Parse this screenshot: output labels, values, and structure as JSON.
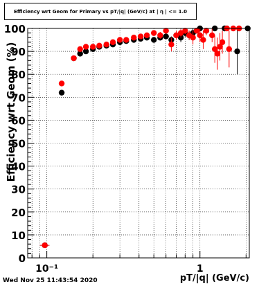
{
  "title": "Efficiency wrt Geom for Primary vs pT/|q| (GeV/c) at | η | <= 1.0",
  "timestamp": "Wed Nov 25 11:43:54 2020",
  "chart_data": {
    "type": "scatter",
    "title": "Efficiency wrt Geom for Primary vs pT/|q| (GeV/c) at | η | <= 1.0",
    "xlabel": "pT/|q| (GeV/c)",
    "ylabel": "Efficiency wrt Geom (%)",
    "xscale": "log",
    "xlim": [
      0.075,
      2.1
    ],
    "ylim": [
      0,
      100
    ],
    "grid": true,
    "x_tick_labels": [
      {
        "value": 0.1,
        "label": "10⁻¹"
      },
      {
        "value": 1,
        "label": "1"
      }
    ],
    "y_ticks": [
      0,
      10,
      20,
      30,
      40,
      50,
      60,
      70,
      80,
      90,
      100
    ],
    "series": [
      {
        "color": "#000000",
        "points": [
          {
            "x": 0.097,
            "y": 5.5,
            "xerr": 0.007,
            "yerr": 0
          },
          {
            "x": 0.125,
            "y": 72,
            "xerr": 0.004,
            "yerr": 0
          },
          {
            "x": 0.15,
            "y": 87,
            "xerr": 0.004,
            "yerr": 0
          },
          {
            "x": 0.165,
            "y": 89,
            "xerr": 0.003,
            "yerr": 0
          },
          {
            "x": 0.18,
            "y": 90,
            "xerr": 0.003,
            "yerr": 0
          },
          {
            "x": 0.2,
            "y": 91,
            "xerr": 0.004,
            "yerr": 0
          },
          {
            "x": 0.22,
            "y": 92,
            "xerr": 0.004,
            "yerr": 0
          },
          {
            "x": 0.245,
            "y": 92.5,
            "xerr": 0.005,
            "yerr": 0
          },
          {
            "x": 0.27,
            "y": 93,
            "xerr": 0.005,
            "yerr": 0
          },
          {
            "x": 0.3,
            "y": 94,
            "xerr": 0.006,
            "yerr": 0
          },
          {
            "x": 0.33,
            "y": 94.5,
            "xerr": 0.006,
            "yerr": 0
          },
          {
            "x": 0.37,
            "y": 95,
            "xerr": 0.007,
            "yerr": 0
          },
          {
            "x": 0.41,
            "y": 95.5,
            "xerr": 0.008,
            "yerr": 0
          },
          {
            "x": 0.45,
            "y": 96,
            "xerr": 0.009,
            "yerr": 0
          },
          {
            "x": 0.5,
            "y": 95,
            "xerr": 0.01,
            "yerr": 1
          },
          {
            "x": 0.55,
            "y": 96,
            "xerr": 0.01,
            "yerr": 1
          },
          {
            "x": 0.6,
            "y": 96.5,
            "xerr": 0.011,
            "yerr": 1
          },
          {
            "x": 0.65,
            "y": 95,
            "xerr": 0.012,
            "yerr": 1.5
          },
          {
            "x": 0.7,
            "y": 97,
            "xerr": 0.013,
            "yerr": 1.5
          },
          {
            "x": 0.75,
            "y": 96,
            "xerr": 0.014,
            "yerr": 2
          },
          {
            "x": 0.8,
            "y": 98,
            "xerr": 0.015,
            "yerr": 2
          },
          {
            "x": 0.85,
            "y": 97,
            "xerr": 0.016,
            "yerr": 2
          },
          {
            "x": 0.9,
            "y": 98,
            "xerr": 0.017,
            "yerr": 2
          },
          {
            "x": 0.95,
            "y": 99,
            "xerr": 0.018,
            "yerr": 1
          },
          {
            "x": 1.0,
            "y": 100,
            "xerr": 0.02,
            "yerr": 0
          },
          {
            "x": 1.1,
            "y": 99,
            "xerr": 0.03,
            "yerr": 1
          },
          {
            "x": 1.25,
            "y": 100,
            "xerr": 0.04,
            "yerr": 0
          },
          {
            "x": 1.45,
            "y": 100,
            "xerr": 0.05,
            "yerr": 0
          },
          {
            "x": 1.75,
            "y": 90,
            "xerr": 0.06,
            "yerr": 10
          },
          {
            "x": 2.05,
            "y": 100,
            "xerr": 0.06,
            "yerr": 0
          }
        ]
      },
      {
        "color": "#ff0000",
        "points": [
          {
            "x": 0.097,
            "y": 5.5,
            "xerr": 0.007,
            "yerr": 0
          },
          {
            "x": 0.125,
            "y": 76,
            "xerr": 0.004,
            "yerr": 0
          },
          {
            "x": 0.15,
            "y": 87,
            "xerr": 0.004,
            "yerr": 0
          },
          {
            "x": 0.165,
            "y": 91,
            "xerr": 0.003,
            "yerr": 0
          },
          {
            "x": 0.18,
            "y": 92,
            "xerr": 0.003,
            "yerr": 0
          },
          {
            "x": 0.2,
            "y": 92,
            "xerr": 0.004,
            "yerr": 0
          },
          {
            "x": 0.22,
            "y": 92.5,
            "xerr": 0.004,
            "yerr": 0
          },
          {
            "x": 0.245,
            "y": 93,
            "xerr": 0.005,
            "yerr": 0
          },
          {
            "x": 0.27,
            "y": 94,
            "xerr": 0.005,
            "yerr": 0
          },
          {
            "x": 0.3,
            "y": 95,
            "xerr": 0.006,
            "yerr": 0
          },
          {
            "x": 0.33,
            "y": 95,
            "xerr": 0.006,
            "yerr": 0
          },
          {
            "x": 0.37,
            "y": 96,
            "xerr": 0.007,
            "yerr": 1
          },
          {
            "x": 0.41,
            "y": 96.5,
            "xerr": 0.008,
            "yerr": 1
          },
          {
            "x": 0.45,
            "y": 97,
            "xerr": 0.009,
            "yerr": 1
          },
          {
            "x": 0.5,
            "y": 98,
            "xerr": 0.01,
            "yerr": 1
          },
          {
            "x": 0.55,
            "y": 97,
            "xerr": 0.01,
            "yerr": 1.5
          },
          {
            "x": 0.6,
            "y": 99,
            "xerr": 0.011,
            "yerr": 1
          },
          {
            "x": 0.65,
            "y": 93,
            "xerr": 0.012,
            "yerr": 3
          },
          {
            "x": 0.7,
            "y": 97,
            "xerr": 0.013,
            "yerr": 2
          },
          {
            "x": 0.75,
            "y": 98,
            "xerr": 0.014,
            "yerr": 2
          },
          {
            "x": 0.8,
            "y": 99,
            "xerr": 0.015,
            "yerr": 1.5
          },
          {
            "x": 0.85,
            "y": 97,
            "xerr": 0.016,
            "yerr": 2
          },
          {
            "x": 0.9,
            "y": 96,
            "xerr": 0.017,
            "yerr": 3
          },
          {
            "x": 0.95,
            "y": 99,
            "xerr": 0.018,
            "yerr": 1
          },
          {
            "x": 1.0,
            "y": 97,
            "xerr": 0.02,
            "yerr": 3
          },
          {
            "x": 1.05,
            "y": 95,
            "xerr": 0.025,
            "yerr": 4
          },
          {
            "x": 1.1,
            "y": 99,
            "xerr": 0.03,
            "yerr": 2
          },
          {
            "x": 1.2,
            "y": 97,
            "xerr": 0.035,
            "yerr": 3
          },
          {
            "x": 1.25,
            "y": 91,
            "xerr": 0.04,
            "yerr": 6
          },
          {
            "x": 1.3,
            "y": 89,
            "xerr": 0.04,
            "yerr": 7
          },
          {
            "x": 1.35,
            "y": 92,
            "xerr": 0.045,
            "yerr": 6
          },
          {
            "x": 1.4,
            "y": 94,
            "xerr": 0.045,
            "yerr": 5
          },
          {
            "x": 1.5,
            "y": 100,
            "xerr": 0.05,
            "yerr": 0
          },
          {
            "x": 1.55,
            "y": 91,
            "xerr": 0.05,
            "yerr": 8
          },
          {
            "x": 1.65,
            "y": 100,
            "xerr": 0.05,
            "yerr": 0
          },
          {
            "x": 1.8,
            "y": 100,
            "xerr": 0.06,
            "yerr": 0
          }
        ]
      }
    ]
  }
}
